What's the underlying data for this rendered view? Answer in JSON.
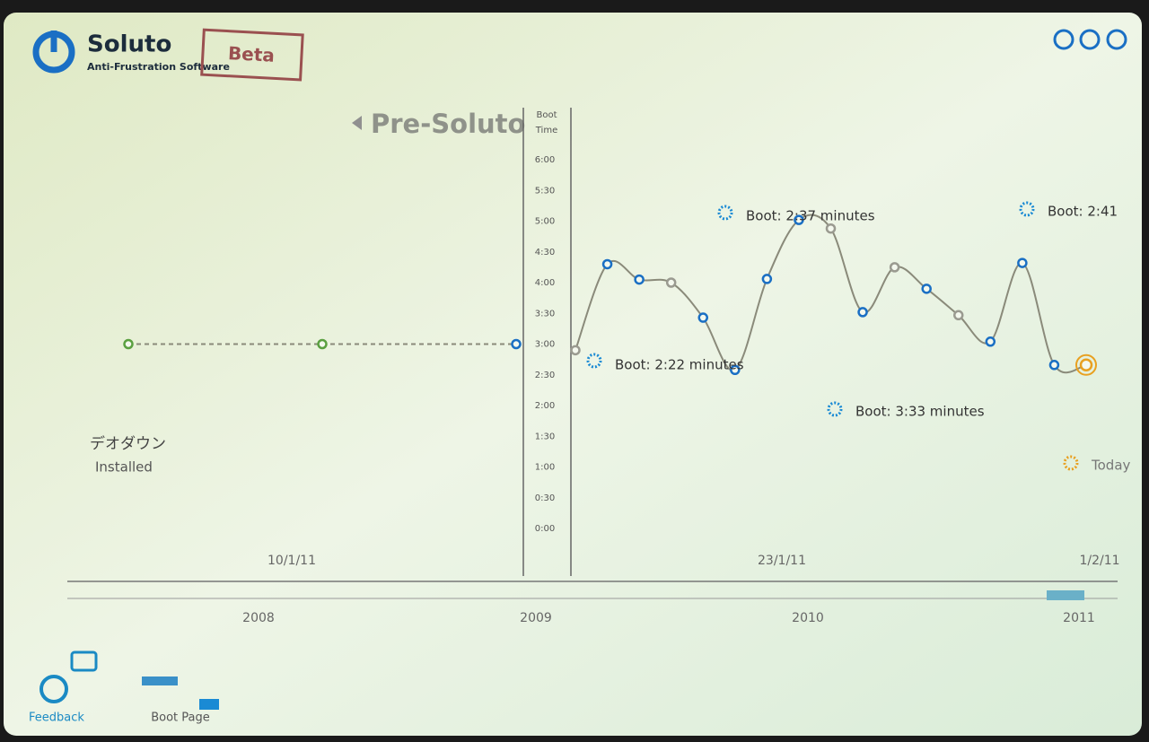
{
  "app": {
    "name": "Soluto",
    "tagline": "Anti-Frustration Software",
    "badge": "Beta"
  },
  "sidebar": {
    "app_name": "デオダウン",
    "status": "Installed"
  },
  "toolbar": {
    "feedback": "Feedback",
    "boot_page": "Boot Page"
  },
  "timeline": {
    "dates": [
      "10/1/11",
      "23/1/11",
      "1/2/11"
    ],
    "years": [
      "2008",
      "2009",
      "2010",
      "2011"
    ]
  },
  "chart_data": {
    "type": "line",
    "section": "Pre-Soluto",
    "y_label": [
      "Boot",
      "Time"
    ],
    "ylim": [
      0,
      6
    ],
    "yticks": [
      {
        "value": 0,
        "label": "0:00"
      },
      {
        "value": 0.5,
        "label": "0:30"
      },
      {
        "value": 1,
        "label": "1:00"
      },
      {
        "value": 1.5,
        "label": "1:30"
      },
      {
        "value": 2,
        "label": "2:00"
      },
      {
        "value": 2.5,
        "label": "2:30"
      },
      {
        "value": 3,
        "label": "3:00"
      },
      {
        "value": 3.5,
        "label": "3:30"
      },
      {
        "value": 4,
        "label": "4:00"
      },
      {
        "value": 4.5,
        "label": "4:30"
      },
      {
        "value": 5,
        "label": "5:00"
      },
      {
        "value": 5.5,
        "label": "5:30"
      },
      {
        "value": 6,
        "label": "6:00"
      }
    ],
    "series": [
      {
        "dashed": true,
        "color": "#8a8a7a",
        "values": [
          3.0,
          3.0,
          3.0
        ],
        "point_colors": [
          "#5aa040",
          "#5aa040",
          "#1a6fc4"
        ]
      },
      {
        "dashed": false,
        "color": "#8a8a7a",
        "values": [
          2.9,
          4.3,
          4.05,
          4.0,
          3.43,
          2.58,
          4.06,
          5.02,
          4.88,
          3.52,
          4.25,
          3.9,
          3.47,
          3.04,
          4.32,
          2.66,
          2.66
        ],
        "point_colors": [
          "#9a9a90",
          "#1a6fc4",
          "#1a6fc4",
          "#9a9a90",
          "#1a6fc4",
          "#1a6fc4",
          "#1a6fc4",
          "#1a6fc4",
          "#9a9a90",
          "#1a6fc4",
          "#9a9a90",
          "#1a6fc4",
          "#9a9a90",
          "#1a6fc4",
          "#1a6fc4",
          "#1a6fc4",
          "#e8a020"
        ]
      }
    ],
    "annotations": [
      {
        "text": "Boot: 2:22 minutes"
      },
      {
        "text": "Boot: 2:37 minutes"
      },
      {
        "text": "Boot: 3:33 minutes"
      },
      {
        "text": "Boot: 2:41"
      },
      {
        "text": "Today"
      }
    ]
  }
}
